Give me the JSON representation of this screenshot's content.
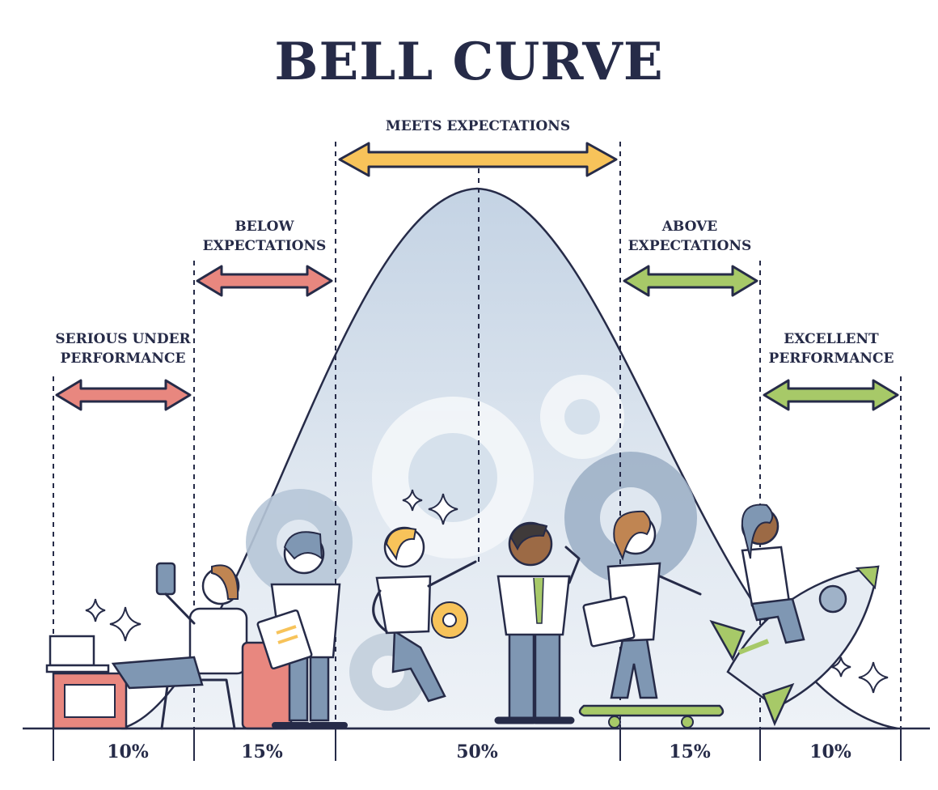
{
  "title": "BELL CURVE",
  "segments": [
    {
      "label_lines": [
        "SERIOUS UNDER",
        "PERFORMANCE"
      ],
      "percent": "10%",
      "color": "#e8877f"
    },
    {
      "label_lines": [
        "BELOW",
        "EXPECTATIONS"
      ],
      "percent": "15%",
      "color": "#e8877f"
    },
    {
      "label_lines": [
        "MEETS EXPECTATIONS"
      ],
      "percent": "50%",
      "color": "#f7c35a"
    },
    {
      "label_lines": [
        "ABOVE",
        "EXPECTATIONS"
      ],
      "percent": "15%",
      "color": "#a7c968"
    },
    {
      "label_lines": [
        "EXCELLENT",
        "PERFORMANCE"
      ],
      "percent": "10%",
      "color": "#a7c968"
    }
  ],
  "curve": {
    "type": "normal distribution",
    "fill": "#c9d7e6",
    "outline": "#262b48"
  },
  "people_icons": [
    "relaxing-person-with-phone-icon",
    "person-holding-document-icon",
    "pointing-person-icon",
    "person-looking-ahead-icon",
    "skateboarding-person-icon",
    "person-riding-rocket-icon"
  ]
}
